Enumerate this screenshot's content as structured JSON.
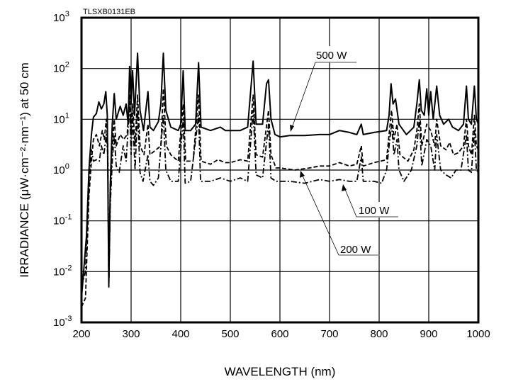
{
  "chart_data": {
    "type": "line",
    "figure_code": "TLSXB0131EB",
    "xlabel": "WAVELENGTH (nm)",
    "ylabel": "IRRADIANCE (μW·cm⁻²·nm⁻¹) at 50 cm",
    "xlim": [
      200,
      1000
    ],
    "ylim": [
      0.001,
      1000
    ],
    "yscale": "log",
    "grid": true,
    "x_ticks": [
      "200",
      "300",
      "400",
      "500",
      "600",
      "700",
      "800",
      "900",
      "1000"
    ],
    "y_ticks": [
      {
        "base": "10",
        "exp": "-3"
      },
      {
        "base": "10",
        "exp": "-2"
      },
      {
        "base": "10",
        "exp": "-1"
      },
      {
        "base": "10",
        "exp": "0"
      },
      {
        "base": "10",
        "exp": "1"
      },
      {
        "base": "10",
        "exp": "2"
      },
      {
        "base": "10",
        "exp": "3"
      }
    ],
    "series": [
      {
        "name": "500 W",
        "style": "solid",
        "points": [
          [
            200,
            0.003
          ],
          [
            210,
            0.05
          ],
          [
            215,
            1
          ],
          [
            220,
            5
          ],
          [
            224,
            11
          ],
          [
            230,
            13
          ],
          [
            235,
            22
          ],
          [
            240,
            16
          ],
          [
            245,
            20
          ],
          [
            249,
            35
          ],
          [
            252,
            12
          ],
          [
            255,
            0.005
          ],
          [
            258,
            0.5
          ],
          [
            262,
            8
          ],
          [
            266,
            32
          ],
          [
            270,
            10
          ],
          [
            278,
            18
          ],
          [
            284,
            12
          ],
          [
            290,
            20
          ],
          [
            294,
            8
          ],
          [
            297,
            110
          ],
          [
            300,
            20
          ],
          [
            303,
            90
          ],
          [
            307,
            12
          ],
          [
            313,
            200
          ],
          [
            318,
            15
          ],
          [
            325,
            6
          ],
          [
            334,
            35
          ],
          [
            338,
            7
          ],
          [
            345,
            6
          ],
          [
            355,
            9
          ],
          [
            360,
            20
          ],
          [
            365,
            200
          ],
          [
            370,
            15
          ],
          [
            380,
            7
          ],
          [
            395,
            6
          ],
          [
            400,
            8
          ],
          [
            405,
            90
          ],
          [
            409,
            6
          ],
          [
            420,
            6
          ],
          [
            430,
            8
          ],
          [
            436,
            130
          ],
          [
            441,
            7
          ],
          [
            460,
            6
          ],
          [
            480,
            7
          ],
          [
            490,
            6
          ],
          [
            500,
            6
          ],
          [
            520,
            6
          ],
          [
            535,
            7
          ],
          [
            546,
            140
          ],
          [
            552,
            8
          ],
          [
            565,
            8
          ],
          [
            573,
            50
          ],
          [
            577,
            60
          ],
          [
            582,
            10
          ],
          [
            590,
            5
          ],
          [
            600,
            4.5
          ],
          [
            620,
            4.8
          ],
          [
            650,
            4.8
          ],
          [
            680,
            5
          ],
          [
            700,
            5
          ],
          [
            720,
            6
          ],
          [
            740,
            5.5
          ],
          [
            755,
            5
          ],
          [
            764,
            8
          ],
          [
            768,
            5
          ],
          [
            790,
            5.5
          ],
          [
            815,
            6
          ],
          [
            820,
            12
          ],
          [
            824,
            50
          ],
          [
            828,
            20
          ],
          [
            833,
            25
          ],
          [
            840,
            8
          ],
          [
            855,
            5
          ],
          [
            870,
            7
          ],
          [
            876,
            20
          ],
          [
            881,
            60
          ],
          [
            885,
            15
          ],
          [
            891,
            12
          ],
          [
            896,
            40
          ],
          [
            900,
            12
          ],
          [
            904,
            35
          ],
          [
            909,
            10
          ],
          [
            916,
            45
          ],
          [
            922,
            12
          ],
          [
            930,
            8
          ],
          [
            940,
            10
          ],
          [
            948,
            7
          ],
          [
            960,
            6
          ],
          [
            970,
            8
          ],
          [
            976,
            45
          ],
          [
            980,
            10
          ],
          [
            986,
            8
          ],
          [
            992,
            45
          ],
          [
            996,
            10
          ],
          [
            1000,
            8
          ]
        ]
      },
      {
        "name": "200 W",
        "style": "dashed",
        "points": [
          [
            200,
            0.002
          ],
          [
            208,
            0.003
          ],
          [
            215,
            0.3
          ],
          [
            220,
            1.5
          ],
          [
            224,
            4
          ],
          [
            230,
            5
          ],
          [
            236,
            3
          ],
          [
            242,
            6
          ],
          [
            246,
            4
          ],
          [
            250,
            10
          ],
          [
            253,
            3
          ],
          [
            255,
            0.005
          ],
          [
            258,
            0.3
          ],
          [
            262,
            3
          ],
          [
            266,
            10
          ],
          [
            270,
            3
          ],
          [
            278,
            5
          ],
          [
            285,
            4
          ],
          [
            292,
            5
          ],
          [
            297,
            30
          ],
          [
            300,
            5
          ],
          [
            303,
            20
          ],
          [
            308,
            3
          ],
          [
            313,
            30
          ],
          [
            318,
            3
          ],
          [
            326,
            2
          ],
          [
            334,
            8
          ],
          [
            338,
            2
          ],
          [
            350,
            2.5
          ],
          [
            360,
            3
          ],
          [
            365,
            40
          ],
          [
            371,
            3
          ],
          [
            380,
            2
          ],
          [
            395,
            1.5
          ],
          [
            405,
            20
          ],
          [
            410,
            1.5
          ],
          [
            425,
            1.5
          ],
          [
            436,
            30
          ],
          [
            441,
            1.5
          ],
          [
            460,
            1.3
          ],
          [
            475,
            1.6
          ],
          [
            490,
            1.4
          ],
          [
            500,
            1.4
          ],
          [
            520,
            1.6
          ],
          [
            535,
            1.5
          ],
          [
            546,
            30
          ],
          [
            552,
            2
          ],
          [
            565,
            1.8
          ],
          [
            577,
            15
          ],
          [
            582,
            2
          ],
          [
            592,
            1.1
          ],
          [
            600,
            1.1
          ],
          [
            630,
            1.0
          ],
          [
            660,
            1.1
          ],
          [
            680,
            1.2
          ],
          [
            700,
            1.2
          ],
          [
            720,
            1.4
          ],
          [
            740,
            1.2
          ],
          [
            755,
            1.3
          ],
          [
            764,
            3
          ],
          [
            768,
            1.2
          ],
          [
            790,
            1.4
          ],
          [
            815,
            1.6
          ],
          [
            820,
            5
          ],
          [
            825,
            15
          ],
          [
            830,
            4
          ],
          [
            836,
            8
          ],
          [
            842,
            2
          ],
          [
            858,
            1.5
          ],
          [
            870,
            2.5
          ],
          [
            876,
            6
          ],
          [
            881,
            20
          ],
          [
            886,
            3
          ],
          [
            896,
            8
          ],
          [
            904,
            6
          ],
          [
            912,
            3
          ],
          [
            916,
            10
          ],
          [
            924,
            3
          ],
          [
            935,
            2.5
          ],
          [
            942,
            3.5
          ],
          [
            950,
            2
          ],
          [
            960,
            2.2
          ],
          [
            970,
            3
          ],
          [
            976,
            10
          ],
          [
            980,
            3
          ],
          [
            986,
            2
          ],
          [
            992,
            12
          ],
          [
            996,
            3
          ],
          [
            1000,
            2.5
          ]
        ]
      },
      {
        "name": "100 W",
        "style": "dashdot",
        "points": [
          [
            200,
            0.005
          ],
          [
            208,
            0.01
          ],
          [
            215,
            0.5
          ],
          [
            220,
            2.5
          ],
          [
            224,
            1.5
          ],
          [
            230,
            1.6
          ],
          [
            236,
            1.5
          ],
          [
            240,
            3
          ],
          [
            245,
            2
          ],
          [
            250,
            5
          ],
          [
            253,
            2
          ],
          [
            255,
            0.005
          ],
          [
            258,
            0.2
          ],
          [
            262,
            1.5
          ],
          [
            266,
            5
          ],
          [
            270,
            1.2
          ],
          [
            276,
            0.9
          ],
          [
            284,
            3
          ],
          [
            290,
            1.5
          ],
          [
            297,
            20
          ],
          [
            300,
            2
          ],
          [
            303,
            12
          ],
          [
            308,
            1
          ],
          [
            313,
            15
          ],
          [
            318,
            0.9
          ],
          [
            324,
            0.6
          ],
          [
            334,
            2
          ],
          [
            338,
            0.6
          ],
          [
            345,
            0.5
          ],
          [
            355,
            0.7
          ],
          [
            365,
            12
          ],
          [
            370,
            1
          ],
          [
            380,
            0.6
          ],
          [
            395,
            0.6
          ],
          [
            405,
            10
          ],
          [
            409,
            0.55
          ],
          [
            420,
            0.6
          ],
          [
            436,
            12
          ],
          [
            440,
            0.6
          ],
          [
            460,
            0.6
          ],
          [
            480,
            0.7
          ],
          [
            500,
            0.6
          ],
          [
            520,
            0.7
          ],
          [
            535,
            0.6
          ],
          [
            546,
            15
          ],
          [
            552,
            0.8
          ],
          [
            565,
            0.7
          ],
          [
            577,
            8
          ],
          [
            582,
            0.7
          ],
          [
            592,
            0.6
          ],
          [
            620,
            0.6
          ],
          [
            650,
            0.55
          ],
          [
            680,
            0.65
          ],
          [
            700,
            0.6
          ],
          [
            720,
            0.65
          ],
          [
            740,
            0.6
          ],
          [
            755,
            0.6
          ],
          [
            764,
            1.8
          ],
          [
            768,
            0.6
          ],
          [
            790,
            0.6
          ],
          [
            805,
            0.55
          ],
          [
            815,
            1
          ],
          [
            820,
            3
          ],
          [
            825,
            8
          ],
          [
            830,
            2
          ],
          [
            836,
            4
          ],
          [
            840,
            1
          ],
          [
            850,
            0.6
          ],
          [
            865,
            1
          ],
          [
            876,
            3
          ],
          [
            881,
            10
          ],
          [
            886,
            1.2
          ],
          [
            896,
            4
          ],
          [
            904,
            3
          ],
          [
            912,
            1
          ],
          [
            916,
            5
          ],
          [
            924,
            1
          ],
          [
            935,
            0.8
          ],
          [
            945,
            0.7
          ],
          [
            955,
            1
          ],
          [
            965,
            1
          ],
          [
            976,
            5
          ],
          [
            980,
            1
          ],
          [
            986,
            0.9
          ],
          [
            992,
            6
          ],
          [
            996,
            1
          ],
          [
            1000,
            0.9
          ]
        ]
      }
    ]
  }
}
